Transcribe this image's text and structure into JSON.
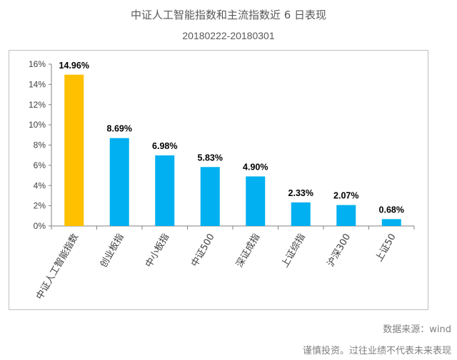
{
  "header": {
    "title": "中证人工智能指数和主流指数近 6 日表现",
    "subtitle": "20180222-20180301"
  },
  "footer": {
    "source": "数据来源：wind",
    "disclaimer": "谨慎投资。过往业绩不代表未来表现"
  },
  "colors": {
    "highlight": "#FFC000",
    "bar": "#00B0F0",
    "axis": "#808080",
    "grid": "#d9d9d9"
  },
  "chart_data": {
    "type": "bar",
    "categories": [
      "中证人工智能指数",
      "创业板指",
      "中小板指",
      "中证500",
      "深证成指",
      "上证综指",
      "沪深300",
      "上证50"
    ],
    "values": [
      14.96,
      8.69,
      6.98,
      5.83,
      4.9,
      2.33,
      2.07,
      0.68
    ],
    "data_labels": [
      "14.96%",
      "8.69%",
      "6.98%",
      "5.83%",
      "4.90%",
      "2.33%",
      "2.07%",
      "0.68%"
    ],
    "y_ticks": [
      "0%",
      "2%",
      "4%",
      "6%",
      "8%",
      "10%",
      "12%",
      "14%",
      "16%"
    ],
    "ylim": [
      0,
      16
    ],
    "grid": false,
    "highlight_index": 0
  }
}
